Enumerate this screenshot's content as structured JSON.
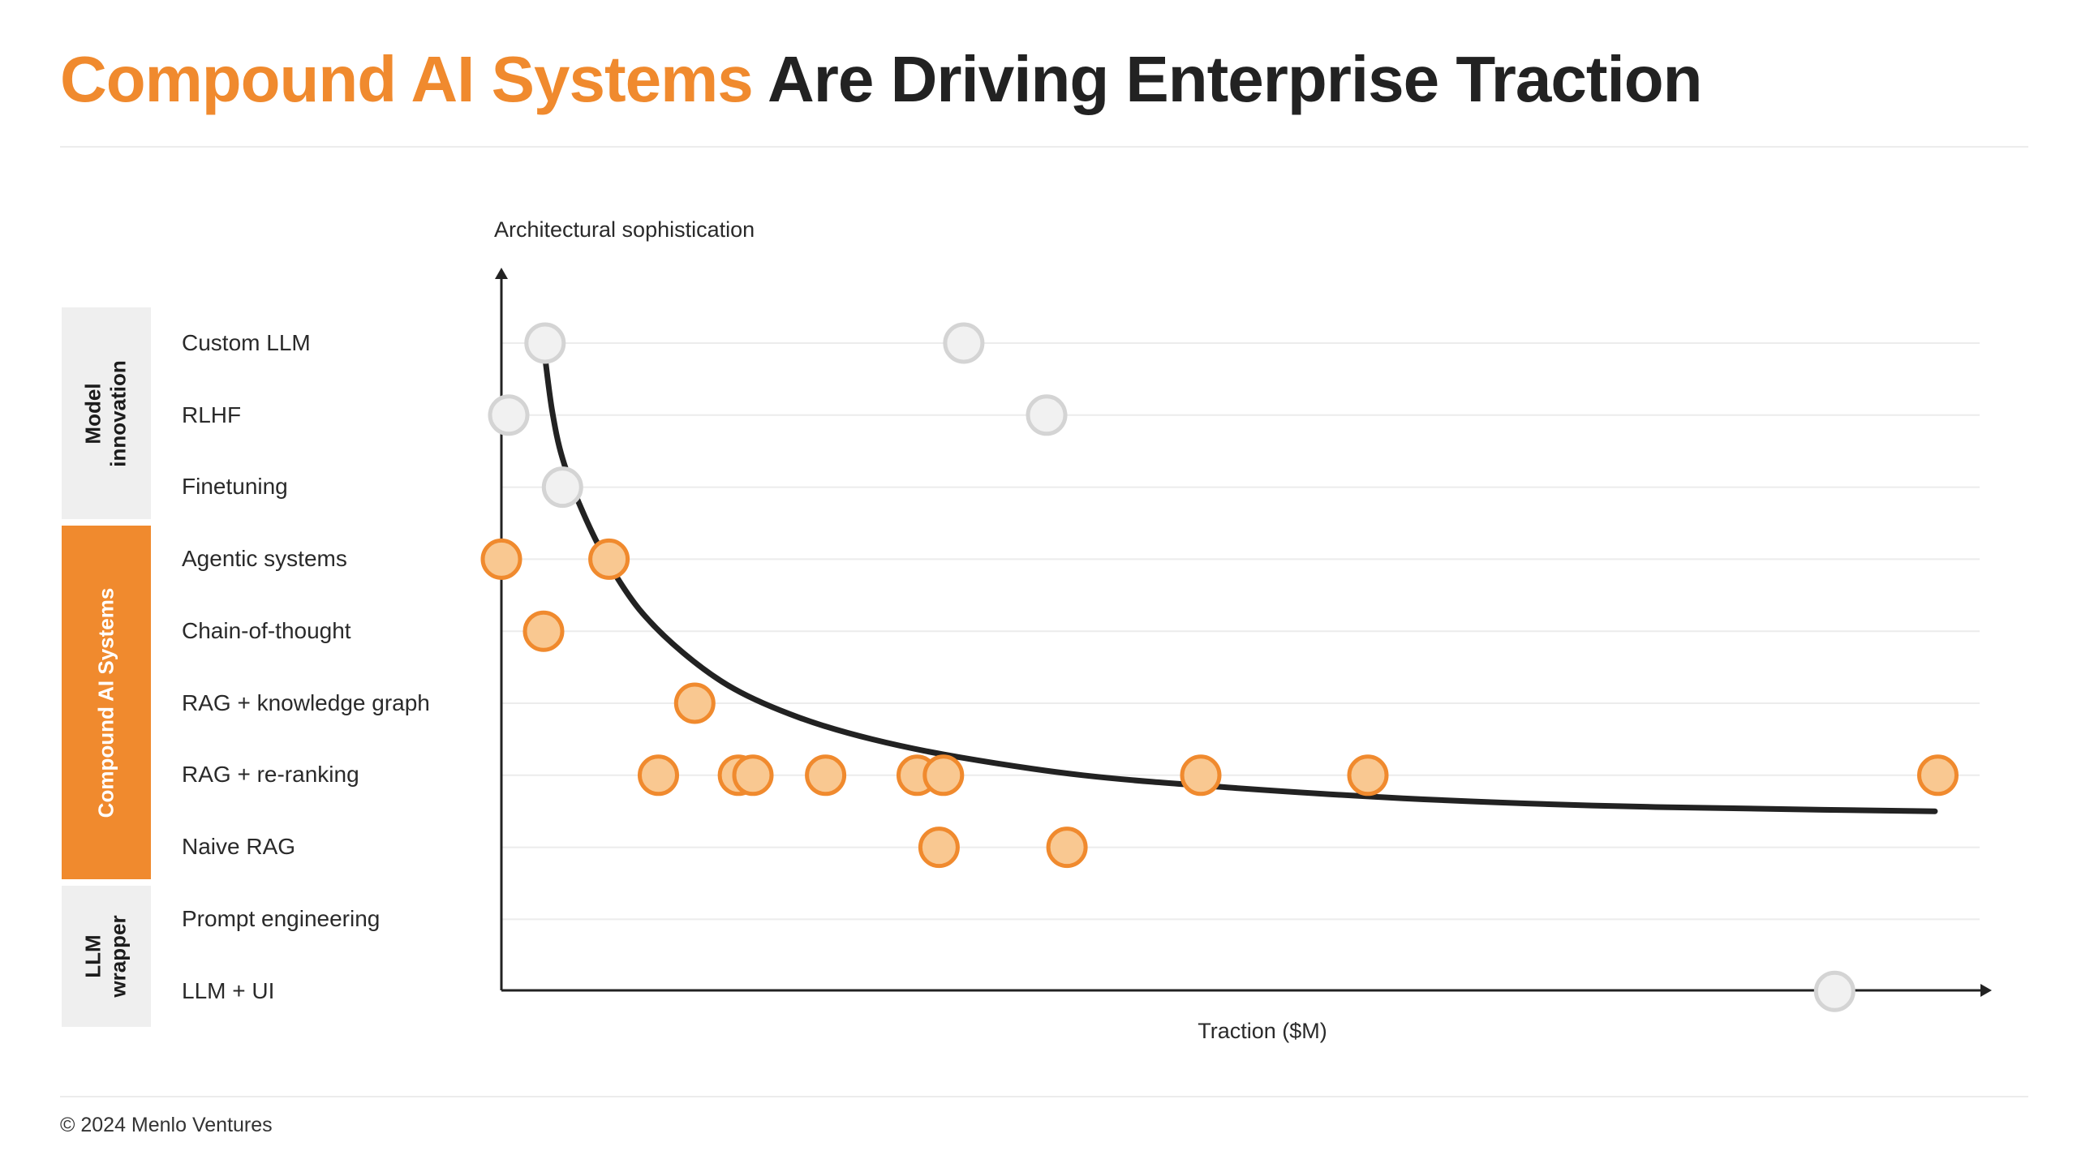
{
  "title": {
    "highlight": "Compound AI Systems",
    "rest": "Are Driving Enterprise Traction"
  },
  "footer": {
    "copyright": "© 2024 Menlo Ventures"
  },
  "groups": [
    {
      "label": "Model\ninnovation",
      "style": "grey"
    },
    {
      "label": "Compound AI Systems",
      "style": "orange"
    },
    {
      "label": "LLM\nwrapper",
      "style": "grey"
    }
  ],
  "colors": {
    "accent": "#F08A2E",
    "accent_fill": "#F9C891",
    "grey_fill": "#F1F1F1",
    "grey_stroke": "#D4D4D4",
    "text": "#222222",
    "curve": "#222222"
  },
  "chart_data": {
    "type": "scatter",
    "xlabel": "Traction ($M)",
    "ylabel": "Architectural sophistication",
    "categories": [
      "Custom LLM",
      "RLHF",
      "Finetuning",
      "Agentic systems",
      "Chain-of-thought",
      "RAG + knowledge graph",
      "RAG + re-ranking",
      "Naive RAG",
      "Prompt engineering",
      "LLM + UI"
    ],
    "xlim": [
      0,
      100
    ],
    "grid": true,
    "legend": "none",
    "series": [
      {
        "group": "Model innovation",
        "points": [
          {
            "category": "Custom LLM",
            "x": 3
          },
          {
            "category": "Custom LLM",
            "x": 31.8
          },
          {
            "category": "RLHF",
            "x": 0.5
          },
          {
            "category": "RLHF",
            "x": 37.5
          },
          {
            "category": "Finetuning",
            "x": 4.2
          }
        ]
      },
      {
        "group": "Compound AI Systems",
        "points": [
          {
            "category": "Agentic systems",
            "x": 0
          },
          {
            "category": "Agentic systems",
            "x": 7.4
          },
          {
            "category": "Chain-of-thought",
            "x": 2.9
          },
          {
            "category": "RAG + knowledge graph",
            "x": 13.3
          },
          {
            "category": "RAG + re-ranking",
            "x": 10.8
          },
          {
            "category": "RAG + re-ranking",
            "x": 16.3
          },
          {
            "category": "RAG + re-ranking",
            "x": 17.3
          },
          {
            "category": "RAG + re-ranking",
            "x": 22.3
          },
          {
            "category": "RAG + re-ranking",
            "x": 28.6
          },
          {
            "category": "RAG + re-ranking",
            "x": 30.4
          },
          {
            "category": "RAG + re-ranking",
            "x": 48.1
          },
          {
            "category": "RAG + re-ranking",
            "x": 59.6
          },
          {
            "category": "RAG + re-ranking",
            "x": 98.8
          },
          {
            "category": "Naive RAG",
            "x": 30.1
          },
          {
            "category": "Naive RAG",
            "x": 38.9
          }
        ]
      },
      {
        "group": "LLM wrapper",
        "points": [
          {
            "category": "LLM + UI",
            "x": 91.7
          }
        ]
      }
    ],
    "trend_line": [
      {
        "x": 3,
        "y": 9.8
      },
      {
        "x": 3.5,
        "y": 9.05
      },
      {
        "x": 4.2,
        "y": 8.4
      },
      {
        "x": 5.5,
        "y": 7.7
      },
      {
        "x": 7.2,
        "y": 7.0
      },
      {
        "x": 9.5,
        "y": 6.3
      },
      {
        "x": 12.5,
        "y": 5.7
      },
      {
        "x": 16,
        "y": 5.2
      },
      {
        "x": 20.5,
        "y": 4.8
      },
      {
        "x": 25.5,
        "y": 4.5
      },
      {
        "x": 31.5,
        "y": 4.25
      },
      {
        "x": 40,
        "y": 4.0
      },
      {
        "x": 50,
        "y": 3.83
      },
      {
        "x": 62,
        "y": 3.68
      },
      {
        "x": 75,
        "y": 3.58
      },
      {
        "x": 88,
        "y": 3.53
      },
      {
        "x": 98.6,
        "y": 3.5
      }
    ]
  }
}
